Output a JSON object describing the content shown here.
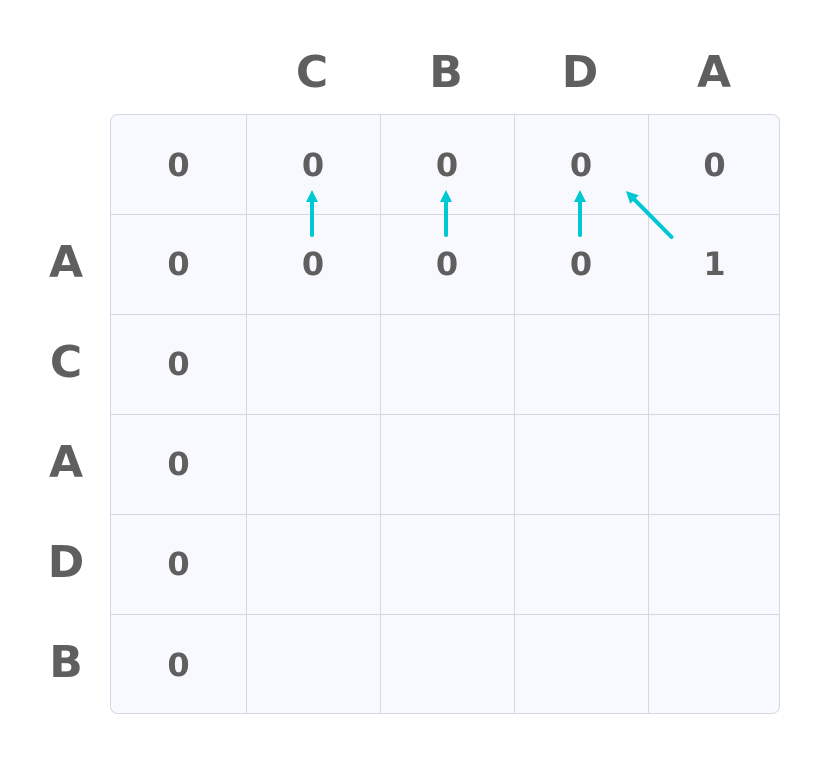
{
  "column_headers": [
    "C",
    "B",
    "D",
    "A"
  ],
  "row_headers": [
    "A",
    "C",
    "A",
    "D",
    "B"
  ],
  "grid": [
    [
      "0",
      "0",
      "0",
      "0",
      "0"
    ],
    [
      "0",
      "0",
      "0",
      "0",
      "1"
    ],
    [
      "0",
      "",
      "",
      "",
      ""
    ],
    [
      "0",
      "",
      "",
      "",
      ""
    ],
    [
      "0",
      "",
      "",
      "",
      ""
    ],
    [
      "0",
      "",
      "",
      "",
      ""
    ]
  ],
  "arrows": [
    {
      "from": [
        1,
        1
      ],
      "to": [
        0,
        1
      ],
      "direction": "up"
    },
    {
      "from": [
        1,
        2
      ],
      "to": [
        0,
        2
      ],
      "direction": "up"
    },
    {
      "from": [
        1,
        3
      ],
      "to": [
        0,
        3
      ],
      "direction": "up"
    },
    {
      "from": [
        1,
        4
      ],
      "to": [
        0,
        3
      ],
      "direction": "diagonal"
    }
  ],
  "colors": {
    "arrow": "#00c8d2",
    "text": "#5f5f5f",
    "cell_bg": "#f8f9fe",
    "border": "#d3d8e2"
  }
}
